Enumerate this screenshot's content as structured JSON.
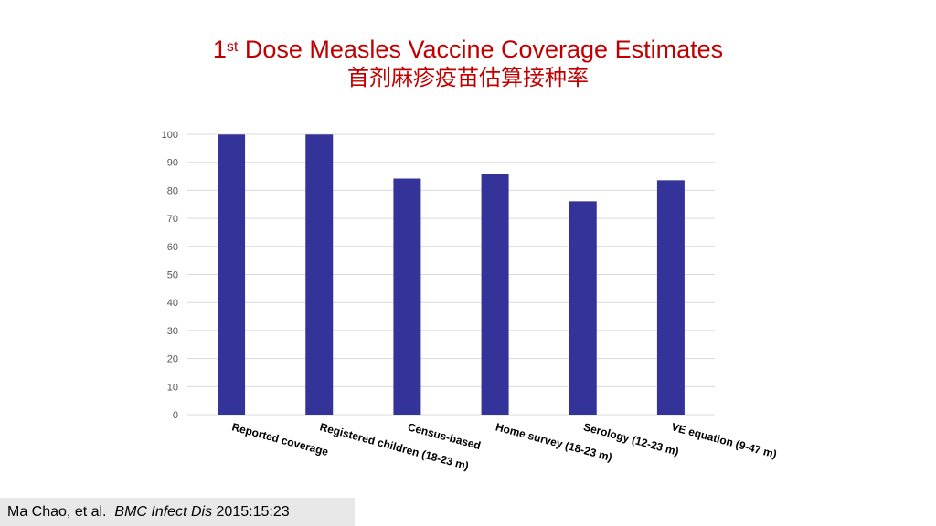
{
  "title": {
    "prefix": "1",
    "superscript": "st",
    "main": " Dose Measles Vaccine Coverage Estimates",
    "subtitle": "首剂麻疹疫苗估算接种率"
  },
  "citation": {
    "authors": "Ma Chao, et al.",
    "journal": "BMC Infect Dis",
    "ref": "2015:15:23"
  },
  "colors": {
    "bar": "#333399",
    "title": "#c00000",
    "grid": "#d9d9d9"
  },
  "chart_data": {
    "type": "bar",
    "categories": [
      "Reported coverage",
      "Registered children (18-23 m)",
      "Census-based",
      "Home survey (18-23 m)",
      "Serology (12-23 m)",
      "VE equation (9-47 m)"
    ],
    "values": [
      99.9,
      99.9,
      84.2,
      85.8,
      76.1,
      83.6
    ],
    "ylim": [
      0,
      100
    ],
    "yticks": [
      0,
      10,
      20,
      30,
      40,
      50,
      60,
      70,
      80,
      90,
      100
    ],
    "grid": true,
    "xlabel": "",
    "ylabel": ""
  }
}
